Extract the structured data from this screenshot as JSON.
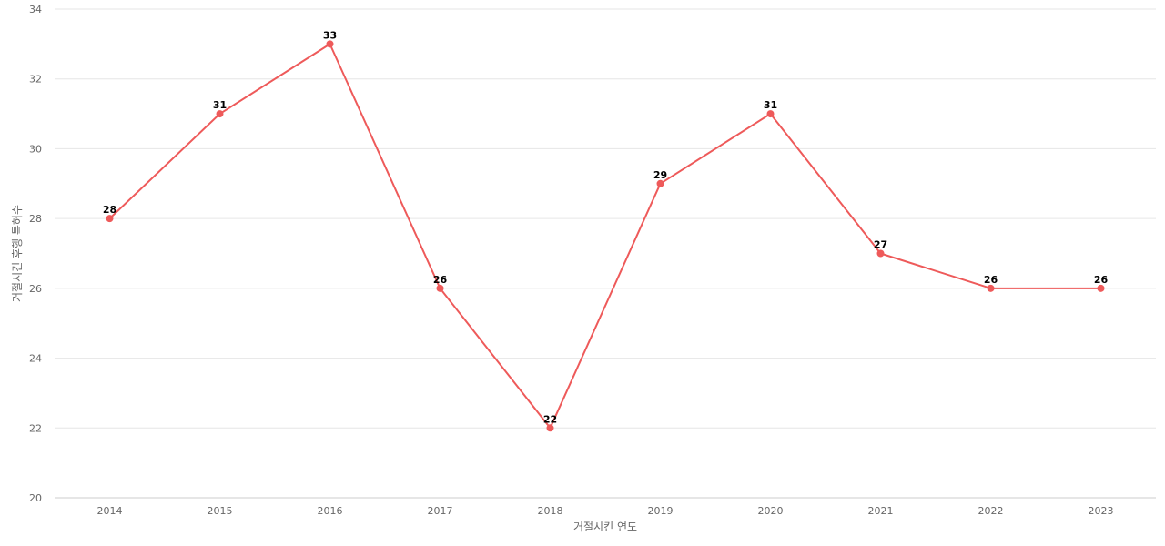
{
  "chart_data": {
    "type": "line",
    "categories": [
      "2014",
      "2015",
      "2016",
      "2017",
      "2018",
      "2019",
      "2020",
      "2021",
      "2022",
      "2023"
    ],
    "series": [
      {
        "values": [
          28,
          31,
          33,
          26,
          22,
          29,
          31,
          27,
          26,
          26
        ],
        "color": "#ee5a5a"
      }
    ],
    "xlabel": "거절시킨 연도",
    "ylabel": "거절시킨 후행 특허수",
    "ylim": [
      20,
      34
    ],
    "yticks": [
      20,
      22,
      24,
      26,
      28,
      30,
      32,
      34
    ],
    "grid": true,
    "data_labels": true,
    "legend": "none"
  }
}
